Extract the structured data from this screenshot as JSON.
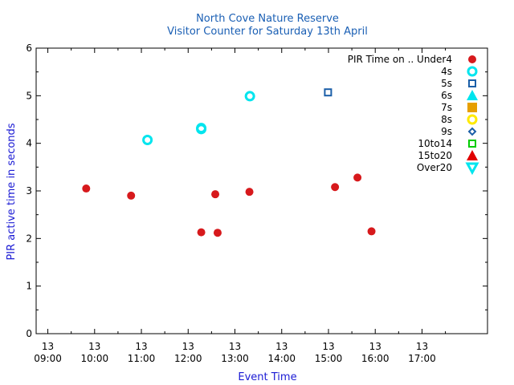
{
  "chart_data": {
    "type": "scatter",
    "title": "North Cove Nature Reserve",
    "subtitle": "Visitor Counter for Saturday 13th April",
    "xlabel": "Event Time",
    "ylabel": "PIR active time in seconds",
    "xlim_hours": [
      8.75,
      18.4
    ],
    "ylim": [
      0,
      6
    ],
    "x_ticks": [
      {
        "hour": 9,
        "day": "13",
        "time": "09:00"
      },
      {
        "hour": 10,
        "day": "13",
        "time": "10:00"
      },
      {
        "hour": 11,
        "day": "13",
        "time": "11:00"
      },
      {
        "hour": 12,
        "day": "13",
        "time": "12:00"
      },
      {
        "hour": 13,
        "day": "13",
        "time": "13:00"
      },
      {
        "hour": 14,
        "day": "13",
        "time": "14:00"
      },
      {
        "hour": 15,
        "day": "13",
        "time": "15:00"
      },
      {
        "hour": 16,
        "day": "13",
        "time": "16:00"
      },
      {
        "hour": 17,
        "day": "13",
        "time": "17:00"
      }
    ],
    "y_ticks": [
      0,
      1,
      2,
      3,
      4,
      5,
      6
    ],
    "legend_title": "PIR Time on ..",
    "legend_position": "top-right",
    "series": [
      {
        "name": "Under4",
        "marker": "filled-circle",
        "color": "#d7191c",
        "points": [
          [
            9.82,
            3.05
          ],
          [
            10.78,
            2.9
          ],
          [
            12.28,
            2.13
          ],
          [
            12.58,
            2.93
          ],
          [
            12.63,
            2.12
          ],
          [
            13.31,
            2.98
          ],
          [
            15.14,
            3.08
          ],
          [
            15.62,
            3.28
          ],
          [
            15.92,
            2.15
          ]
        ]
      },
      {
        "name": "4s",
        "marker": "open-circle",
        "color": "#00e5ee",
        "points": [
          [
            11.13,
            4.07
          ],
          [
            12.28,
            4.3
          ],
          [
            12.28,
            4.32
          ],
          [
            13.32,
            4.99
          ]
        ]
      },
      {
        "name": "5s",
        "marker": "open-square",
        "color": "#1c5fa8",
        "points": [
          [
            14.99,
            5.07
          ]
        ]
      },
      {
        "name": "6s",
        "marker": "filled-triangle",
        "color": "#00e5ee",
        "points": []
      },
      {
        "name": "7s",
        "marker": "filled-square",
        "color": "#e69f00",
        "points": []
      },
      {
        "name": "8s",
        "marker": "open-circle",
        "color": "#ffea00",
        "points": []
      },
      {
        "name": "9s",
        "marker": "open-diamond",
        "color": "#1c5fa8",
        "points": []
      },
      {
        "name": "10to14",
        "marker": "open-square",
        "color": "#00cc00",
        "points": []
      },
      {
        "name": "15to20",
        "marker": "filled-triangle",
        "color": "#e00000",
        "points": []
      },
      {
        "name": "Over20",
        "marker": "open-triangle-down",
        "color": "#00e5ee",
        "points": []
      }
    ]
  }
}
